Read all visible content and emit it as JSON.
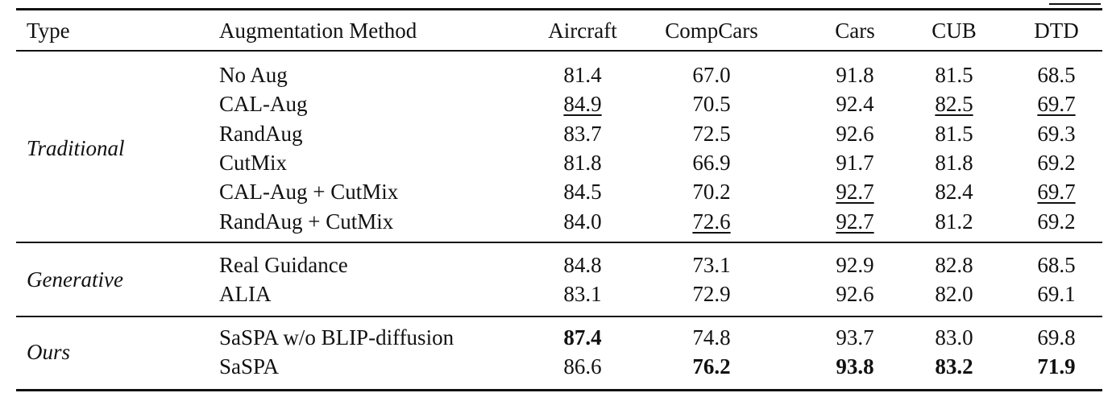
{
  "table": {
    "header": [
      "Type",
      "Augmentation Method",
      "Aircraft",
      "CompCars",
      "Cars",
      "CUB",
      "DTD"
    ],
    "groups": [
      {
        "type": "Traditional",
        "rows": [
          {
            "method": "No Aug",
            "values": [
              "81.4",
              "67.0",
              "91.8",
              "81.5",
              "68.5"
            ],
            "styles": [
              "plain",
              "plain",
              "plain",
              "plain",
              "plain"
            ]
          },
          {
            "method": "CAL-Aug",
            "values": [
              "84.9",
              "70.5",
              "92.4",
              "82.5",
              "69.7"
            ],
            "styles": [
              "underline",
              "plain",
              "plain",
              "underline",
              "underline"
            ]
          },
          {
            "method": "RandAug",
            "values": [
              "83.7",
              "72.5",
              "92.6",
              "81.5",
              "69.3"
            ],
            "styles": [
              "plain",
              "plain",
              "plain",
              "plain",
              "plain"
            ]
          },
          {
            "method": "CutMix",
            "values": [
              "81.8",
              "66.9",
              "91.7",
              "81.8",
              "69.2"
            ],
            "styles": [
              "plain",
              "plain",
              "plain",
              "plain",
              "plain"
            ]
          },
          {
            "method": "CAL-Aug + CutMix",
            "values": [
              "84.5",
              "70.2",
              "92.7",
              "82.4",
              "69.7"
            ],
            "styles": [
              "plain",
              "plain",
              "underline",
              "plain",
              "underline"
            ]
          },
          {
            "method": "RandAug + CutMix",
            "values": [
              "84.0",
              "72.6",
              "92.7",
              "81.2",
              "69.2"
            ],
            "styles": [
              "plain",
              "underline",
              "underline",
              "plain",
              "plain"
            ]
          }
        ]
      },
      {
        "type": "Generative",
        "rows": [
          {
            "method": "Real Guidance",
            "values": [
              "84.8",
              "73.1",
              "92.9",
              "82.8",
              "68.5"
            ],
            "styles": [
              "plain",
              "plain",
              "plain",
              "plain",
              "plain"
            ]
          },
          {
            "method": "ALIA",
            "values": [
              "83.1",
              "72.9",
              "92.6",
              "82.0",
              "69.1"
            ],
            "styles": [
              "plain",
              "plain",
              "plain",
              "plain",
              "plain"
            ]
          }
        ]
      },
      {
        "type": "Ours",
        "rows": [
          {
            "method": "SaSPA w/o BLIP-diffusion",
            "values": [
              "87.4",
              "74.8",
              "93.7",
              "83.0",
              "69.8"
            ],
            "styles": [
              "bold",
              "plain",
              "plain",
              "plain",
              "plain"
            ]
          },
          {
            "method": "SaSPA",
            "values": [
              "86.6",
              "76.2",
              "93.8",
              "83.2",
              "71.9"
            ],
            "styles": [
              "plain",
              "bold",
              "bold",
              "bold",
              "bold"
            ]
          }
        ]
      }
    ]
  }
}
